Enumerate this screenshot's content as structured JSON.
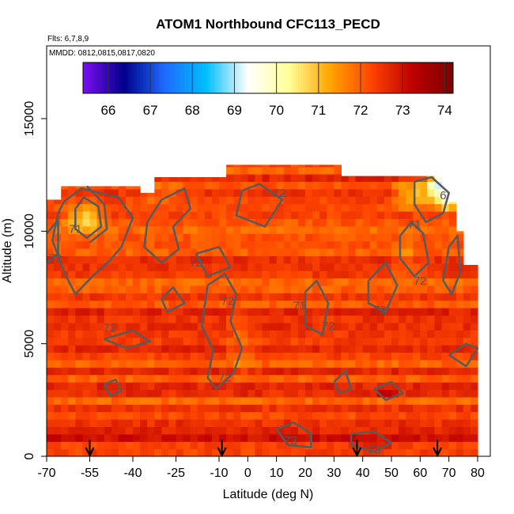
{
  "chart_data": {
    "type": "heatmap",
    "title": "ATOM1 Northbound CFC113_PECD",
    "flights_label": "Flts: 6,7,8,9",
    "dates_label": "MMDD: 0812,0815,0817,0820",
    "xlabel": "Latitude (deg N)",
    "ylabel": "Altitude (m)",
    "xlim": [
      -70,
      80
    ],
    "ylim": [
      0,
      18000
    ],
    "x_ticks": [
      -70,
      -55,
      -40,
      -25,
      -10,
      0,
      10,
      20,
      30,
      40,
      50,
      60,
      70,
      80
    ],
    "x_tick_labels": [
      "-70",
      "-55",
      "-40",
      "-25",
      "-10",
      "0",
      "10",
      "20",
      "30",
      "40",
      "50",
      "60",
      "70",
      "80"
    ],
    "y_ticks": [
      0,
      5000,
      10000,
      15000
    ],
    "y_tick_labels": [
      "0",
      "5000",
      "10000",
      "15000"
    ],
    "colorbar": {
      "range": [
        65.4,
        74.2
      ],
      "ticks": [
        66,
        67,
        68,
        69,
        70,
        71,
        72,
        73,
        74
      ],
      "tick_labels": [
        "66",
        "67",
        "68",
        "69",
        "70",
        "71",
        "72",
        "73",
        "74"
      ],
      "colors": [
        "#7a0ff0",
        "#00008b",
        "#1e6cff",
        "#00bfff",
        "#ffffff",
        "#ffff99",
        "#ffa500",
        "#ff4500",
        "#c00000",
        "#7a0000"
      ]
    },
    "contour_labels": [
      {
        "text": "71",
        "x": -60,
        "y": 10100
      },
      {
        "text": "72",
        "x": -67,
        "y": 8800
      },
      {
        "text": "72",
        "x": 11,
        "y": 11700
      },
      {
        "text": "72",
        "x": -18,
        "y": 8600
      },
      {
        "text": "72",
        "x": -7,
        "y": 6900
      },
      {
        "text": "72",
        "x": -48,
        "y": 5700
      },
      {
        "text": "72",
        "x": -8,
        "y": 3500
      },
      {
        "text": "72",
        "x": 28,
        "y": 5800
      },
      {
        "text": "71",
        "x": 18,
        "y": 6700
      },
      {
        "text": "72",
        "x": 46,
        "y": 6500
      },
      {
        "text": "72",
        "x": 60,
        "y": 7800
      },
      {
        "text": "71",
        "x": 58,
        "y": 10300
      },
      {
        "text": "6",
        "x": 68,
        "y": 11600
      },
      {
        "text": "73",
        "x": 44,
        "y": 300
      },
      {
        "text": "73",
        "x": 15,
        "y": 700
      }
    ],
    "flight_date_arrows_x": [
      -55,
      -9,
      38,
      66
    ]
  }
}
